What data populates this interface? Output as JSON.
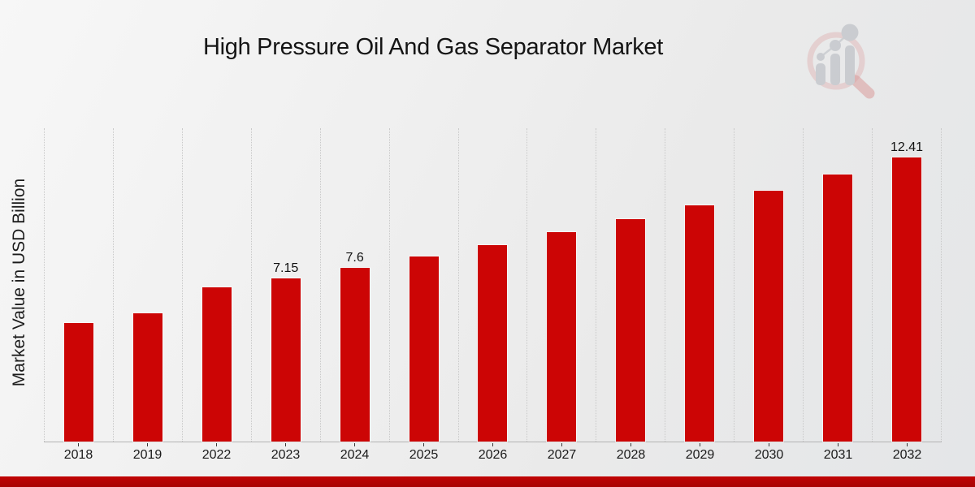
{
  "title": "High Pressure Oil And Gas Separator Market",
  "ylabel": "Market Value in USD Billion",
  "logo_icon": "magnifier-bar-chart-logo",
  "colors": {
    "bar": "#cc0505",
    "footer_bar": "#b30505",
    "background": "#ededed",
    "text": "#1a1a1a"
  },
  "chart_data": {
    "type": "bar",
    "title": "High Pressure Oil And Gas Separator Market",
    "xlabel": "",
    "ylabel": "Market Value in USD Billion",
    "categories": [
      "2018",
      "2019",
      "2022",
      "2023",
      "2024",
      "2025",
      "2026",
      "2027",
      "2028",
      "2029",
      "2030",
      "2031",
      "2032"
    ],
    "values": [
      5.18,
      5.6,
      6.75,
      7.15,
      7.6,
      8.08,
      8.6,
      9.15,
      9.72,
      10.33,
      10.96,
      11.67,
      12.41
    ],
    "bar_labels": [
      "",
      "",
      "",
      "7.15",
      "7.6",
      "",
      "",
      "",
      "",
      "",
      "",
      "",
      "12.41"
    ],
    "ylim": [
      0,
      13.7
    ],
    "grid": "vertical-dotted",
    "legend": "none",
    "bar_color": "#cc0505"
  }
}
